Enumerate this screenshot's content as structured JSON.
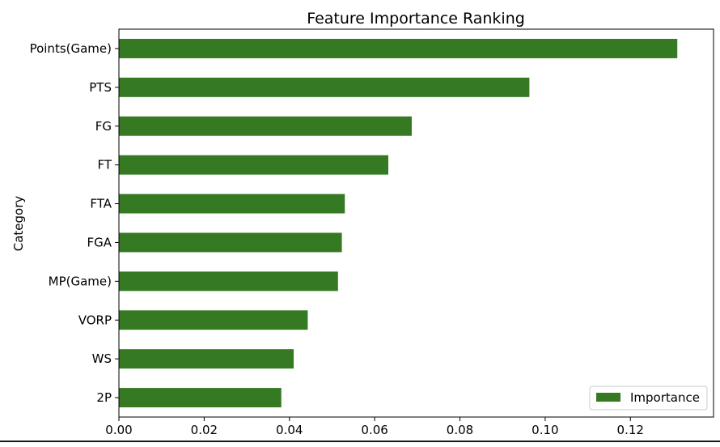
{
  "chart_data": {
    "type": "bar",
    "orientation": "horizontal",
    "title": "Feature Importance Ranking",
    "xlabel": "",
    "ylabel": "Category",
    "categories": [
      "Points(Game)",
      "PTS",
      "FG",
      "FT",
      "FTA",
      "FGA",
      "MP(Game)",
      "VORP",
      "WS",
      "2P"
    ],
    "series": [
      {
        "name": "Importance",
        "values": [
          0.131,
          0.0963,
          0.0687,
          0.0632,
          0.053,
          0.0523,
          0.0514,
          0.0443,
          0.041,
          0.0381
        ]
      }
    ],
    "xlim": [
      0,
      0.1395
    ],
    "xticks": [
      0.0,
      0.02,
      0.04,
      0.06,
      0.08,
      0.1,
      0.12
    ],
    "xtick_labels": [
      "0.00",
      "0.02",
      "0.04",
      "0.06",
      "0.08",
      "0.10",
      "0.12"
    ],
    "grid": false,
    "legend_position": "bottom-right",
    "colors": {
      "bar": "#357a23",
      "axis": "#000000"
    }
  }
}
